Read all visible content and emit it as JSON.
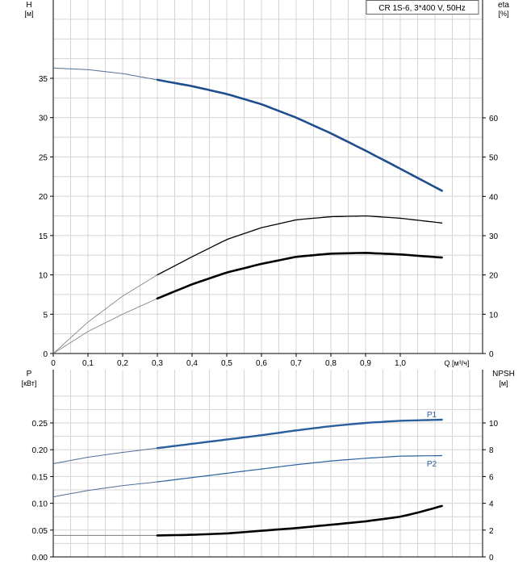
{
  "colors": {
    "grid": "#d4d4d4",
    "axis": "#000000",
    "text": "#000000",
    "head_curve": "#1f4e8c",
    "power_curve": "#2a5f9e",
    "dark_curve": "#000000",
    "thin_curve": "#7a7a7a"
  },
  "chart_data": [
    {
      "name": "performance",
      "type": "line",
      "title": "CR 1S-6, 3*400 V, 50Hz",
      "ylabel": "H",
      "yunit": "[м]",
      "y2label": "eta",
      "y2unit": "[%]",
      "xlabel": "Q [м³/ч]",
      "xlim": [
        0,
        1.24
      ],
      "ylim": [
        0,
        40
      ],
      "y2lim": [
        0,
        80
      ],
      "xticks": [
        "0",
        "0,1",
        "0,2",
        "0,3",
        "0,4",
        "0,5",
        "0,6",
        "0,7",
        "0,8",
        "0,9",
        "1,0"
      ],
      "yticks": [
        "0",
        "5",
        "10",
        "15",
        "20",
        "25",
        "30",
        "35"
      ],
      "y2ticks": [
        "0",
        "10",
        "20",
        "30",
        "40",
        "50",
        "60"
      ],
      "grid": true,
      "series": [
        {
          "role": "head",
          "axis": "left",
          "x": [
            0,
            0.1,
            0.2,
            0.3,
            0.4,
            0.5,
            0.6,
            0.7,
            0.8,
            0.9,
            1.0,
            1.12
          ],
          "y": [
            36.3,
            36.1,
            35.6,
            34.8,
            34.0,
            33.0,
            31.7,
            30.0,
            28.0,
            25.8,
            23.5,
            20.7
          ],
          "valid_from": 0.3
        },
        {
          "role": "curve-2",
          "axis": "left",
          "x": [
            0,
            0.1,
            0.2,
            0.3,
            0.4,
            0.5,
            0.6,
            0.7,
            0.8,
            0.9,
            1.0,
            1.12
          ],
          "y": [
            0,
            4.0,
            7.3,
            10.0,
            12.3,
            14.5,
            16.0,
            17.0,
            17.4,
            17.5,
            17.2,
            16.6
          ],
          "valid_from": 0.3
        },
        {
          "role": "curve-3",
          "axis": "left",
          "x": [
            0,
            0.1,
            0.2,
            0.3,
            0.4,
            0.5,
            0.6,
            0.7,
            0.8,
            0.9,
            1.0,
            1.12
          ],
          "y": [
            0,
            2.8,
            5.0,
            7.0,
            8.8,
            10.3,
            11.4,
            12.3,
            12.7,
            12.8,
            12.6,
            12.2
          ],
          "valid_from": 0.3
        }
      ]
    },
    {
      "name": "power-npsh",
      "type": "line",
      "ylabel": "P",
      "yunit": "[кВт]",
      "y2label": "NPSH",
      "y2unit": "[м]",
      "xlim": [
        0,
        1.24
      ],
      "ylim": [
        0,
        0.3
      ],
      "y2lim": [
        0,
        12
      ],
      "xticks": [],
      "yticks": [
        "0.00",
        "0.05",
        "0.10",
        "0.15",
        "0.20",
        "0.25"
      ],
      "y2ticks": [
        "0",
        "2",
        "4",
        "6",
        "8",
        "10"
      ],
      "grid": true,
      "series": [
        {
          "name": "P1",
          "axis": "left",
          "x": [
            0,
            0.1,
            0.2,
            0.3,
            0.4,
            0.5,
            0.6,
            0.7,
            0.8,
            0.9,
            1.0,
            1.12
          ],
          "y": [
            0.174,
            0.186,
            0.195,
            0.203,
            0.211,
            0.219,
            0.227,
            0.236,
            0.244,
            0.25,
            0.254,
            0.256
          ],
          "valid_from": 0.3
        },
        {
          "name": "P2",
          "axis": "left",
          "x": [
            0,
            0.1,
            0.2,
            0.3,
            0.4,
            0.5,
            0.6,
            0.7,
            0.8,
            0.9,
            1.0,
            1.12
          ],
          "y": [
            0.112,
            0.124,
            0.133,
            0.14,
            0.148,
            0.156,
            0.164,
            0.172,
            0.179,
            0.184,
            0.188,
            0.189
          ],
          "valid_from": 0.3
        },
        {
          "role": "npsh",
          "axis": "right",
          "x": [
            0,
            0.1,
            0.2,
            0.3,
            0.4,
            0.5,
            0.6,
            0.7,
            0.8,
            0.9,
            1.0,
            1.05,
            1.12
          ],
          "y": [
            1.6,
            1.6,
            1.6,
            1.6,
            1.65,
            1.75,
            1.95,
            2.15,
            2.4,
            2.65,
            3.0,
            3.3,
            3.8
          ],
          "valid_from": 0.3
        }
      ]
    }
  ]
}
